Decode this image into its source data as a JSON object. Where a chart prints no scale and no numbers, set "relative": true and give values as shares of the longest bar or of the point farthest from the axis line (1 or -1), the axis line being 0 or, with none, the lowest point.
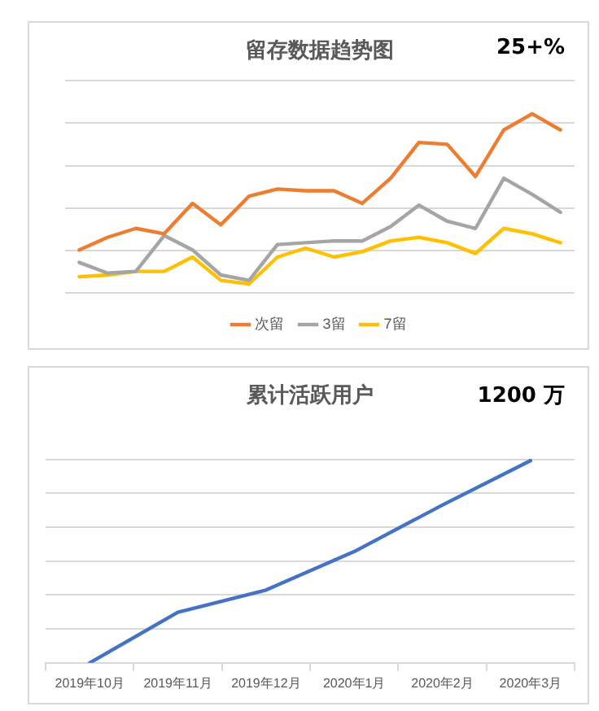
{
  "chart_data": [
    {
      "type": "line",
      "title": "留存数据趋势图",
      "annotations": [
        "25+%"
      ],
      "relative": true,
      "grid": "y",
      "legend": "bottom",
      "marker": "none",
      "tick_labels": false,
      "categories": [
        null,
        null,
        null,
        null,
        null,
        null,
        null,
        null,
        null,
        null,
        null,
        null,
        null,
        null,
        null,
        null,
        null,
        null
      ],
      "series": [
        {
          "name": "次留",
          "color": "#ed7d31",
          "values": [
            0.24,
            0.31,
            0.36,
            0.33,
            0.5,
            0.38,
            0.54,
            0.58,
            0.57,
            0.57,
            0.5,
            0.64,
            0.84,
            0.83,
            0.65,
            0.91,
            1,
            0.91
          ]
        },
        {
          "name": "3留",
          "color": "#a5a5a5",
          "values": [
            0.17,
            0.11,
            0.12,
            0.32,
            0.24,
            0.1,
            0.07,
            0.27,
            0.28,
            0.29,
            0.29,
            0.37,
            0.49,
            0.4,
            0.36,
            0.64,
            0.55,
            0.45
          ]
        },
        {
          "name": "7留",
          "color": "#ffc000",
          "values": [
            0.09,
            0.1,
            0.12,
            0.12,
            0.2,
            0.07,
            0.05,
            0.2,
            0.25,
            0.2,
            0.23,
            0.29,
            0.31,
            0.28,
            0.22,
            0.36,
            0.33,
            0.28
          ]
        }
      ]
    },
    {
      "type": "line",
      "title": "累计活跃用户",
      "annotations": [
        "1200 万"
      ],
      "relative": true,
      "grid": "y",
      "marker": "none",
      "tick_labels": "x",
      "categories": [
        "2019年10月",
        "2019年11月",
        "2019年12月",
        "2020年1月",
        "2020年2月",
        "2020年3月"
      ],
      "series": [
        {
          "color": "#4472c4",
          "values": [
            0,
            0.25,
            0.36,
            0.55,
            0.78,
            1
          ]
        }
      ]
    }
  ]
}
